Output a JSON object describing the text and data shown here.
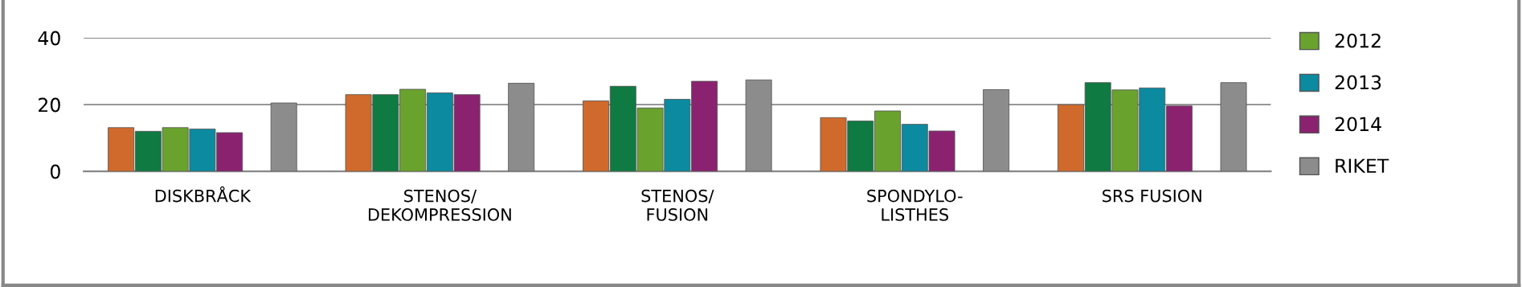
{
  "chart_data": {
    "type": "bar",
    "categories": [
      "DISKBRÅCK",
      "STENOS/\nDEKOMPRESSION",
      "STENOS/\nFUSION",
      "SPONDYLO-\nLISTHES",
      "SRS FUSION"
    ],
    "series": [
      {
        "color": "#d06a2c",
        "values": [
          13.1,
          23.0,
          21.1,
          16.1,
          20.0
        ]
      },
      {
        "color": "#0f7a42",
        "values": [
          12.0,
          23.0,
          25.5,
          15.1,
          26.6
        ]
      },
      {
        "name": "2012",
        "color": "#6aa22e",
        "values": [
          13.1,
          24.6,
          19.0,
          18.1,
          24.4
        ]
      },
      {
        "name": "2013",
        "color": "#0c8aa0",
        "values": [
          12.7,
          23.5,
          21.6,
          14.1,
          25.0
        ]
      },
      {
        "name": "2014",
        "color": "#8a2270",
        "values": [
          11.6,
          23.0,
          27.0,
          12.1,
          19.6
        ]
      },
      {
        "name": "RIKET",
        "color": "#8c8c8c",
        "values": [
          20.5,
          26.4,
          27.4,
          24.5,
          26.6
        ]
      }
    ],
    "ylim": [
      0,
      40
    ],
    "yticks": [
      0,
      20,
      40
    ],
    "grid": "y",
    "legend": "right"
  }
}
